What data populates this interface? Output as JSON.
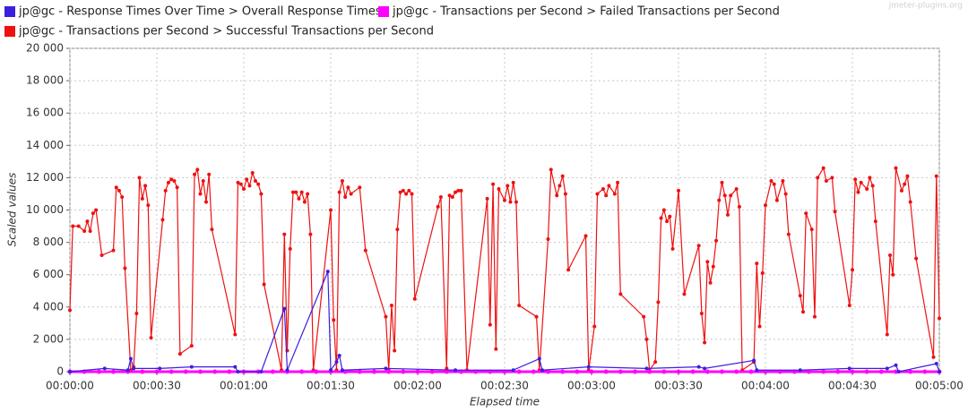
{
  "chart_data": {
    "type": "line",
    "watermark": "jmeter-plugins.org",
    "x_label": "Elapsed time",
    "y_label": "Scaled values",
    "xlim": [
      0,
      300
    ],
    "xticks": [
      {
        "value": 0,
        "label": "00:00:00"
      },
      {
        "value": 30,
        "label": "00:00:30"
      },
      {
        "value": 60,
        "label": "00:01:00"
      },
      {
        "value": 90,
        "label": "00:01:30"
      },
      {
        "value": 120,
        "label": "00:02:00"
      },
      {
        "value": 150,
        "label": "00:02:30"
      },
      {
        "value": 180,
        "label": "00:03:00"
      },
      {
        "value": 210,
        "label": "00:03:30"
      },
      {
        "value": 240,
        "label": "00:04:00"
      },
      {
        "value": 270,
        "label": "00:04:30"
      },
      {
        "value": 300,
        "label": "00:05:00"
      }
    ],
    "ylim": [
      0,
      20000
    ],
    "yticks": [
      0,
      {
        "value": 2000,
        "label": "2 000"
      },
      {
        "value": 4000,
        "label": "4 000"
      },
      {
        "value": 6000,
        "label": "6 000"
      },
      {
        "value": 8000,
        "label": "8 000"
      },
      {
        "value": 10000,
        "label": "10 000"
      },
      {
        "value": 12000,
        "label": "12 000"
      },
      {
        "value": 14000,
        "label": "14 000"
      },
      {
        "value": 16000,
        "label": "16 000"
      },
      {
        "value": 18000,
        "label": "18 000"
      },
      {
        "value": 20000,
        "label": "20 000"
      }
    ],
    "grid": true,
    "series": [
      {
        "name": "jp@gc - Response Times Over Time > Overall Response Times",
        "color": "#3a1fe0",
        "x": [
          0,
          12,
          20,
          21,
          22,
          31,
          42,
          57,
          58,
          66,
          74,
          75,
          89,
          90,
          92,
          93,
          94,
          109,
          133,
          153,
          162,
          163,
          179,
          199,
          217,
          219,
          236,
          237,
          252,
          269,
          282,
          285,
          286,
          299,
          300
        ],
        "values": [
          0,
          200,
          100,
          800,
          200,
          200,
          300,
          300,
          0,
          0,
          3900,
          100,
          6200,
          100,
          600,
          1000,
          100,
          200,
          100,
          100,
          800,
          100,
          300,
          200,
          300,
          200,
          700,
          100,
          100,
          200,
          200,
          400,
          0,
          500,
          0
        ]
      },
      {
        "name": "jp@gc - Transactions per Second > Failed Transactions per Second",
        "color": "#ff00ff",
        "x": [
          0,
          5,
          10,
          15,
          20,
          25,
          30,
          35,
          40,
          45,
          50,
          55,
          60,
          65,
          70,
          75,
          80,
          85,
          90,
          95,
          100,
          105,
          110,
          115,
          120,
          125,
          130,
          135,
          140,
          145,
          150,
          155,
          160,
          165,
          170,
          175,
          180,
          185,
          190,
          195,
          200,
          205,
          210,
          215,
          220,
          225,
          230,
          235,
          240,
          245,
          250,
          255,
          260,
          265,
          270,
          275,
          280,
          285,
          290,
          295,
          300
        ],
        "values": [
          0,
          0,
          0,
          0,
          0,
          0,
          0,
          0,
          0,
          0,
          0,
          0,
          0,
          0,
          0,
          0,
          0,
          0,
          0,
          0,
          0,
          0,
          0,
          0,
          0,
          0,
          0,
          0,
          0,
          0,
          0,
          0,
          0,
          0,
          0,
          0,
          0,
          0,
          0,
          0,
          0,
          0,
          0,
          0,
          0,
          0,
          0,
          0,
          0,
          0,
          0,
          0,
          0,
          0,
          0,
          0,
          0,
          0,
          0,
          0,
          0
        ]
      },
      {
        "name": "jp@gc - Transactions per Second > Successful Transactions per Second",
        "color": "#ee1111",
        "x": [
          0,
          1,
          3,
          5,
          6,
          7,
          8,
          9,
          11,
          15,
          16,
          17,
          18,
          19,
          21,
          22,
          23,
          24,
          25,
          26,
          27,
          28,
          32,
          33,
          34,
          35,
          36,
          37,
          38,
          42,
          43,
          44,
          45,
          46,
          47,
          48,
          49,
          57,
          58,
          59,
          60,
          61,
          62,
          63,
          64,
          65,
          66,
          67,
          73,
          74,
          75,
          76,
          77,
          78,
          79,
          80,
          81,
          82,
          83,
          84,
          90,
          91,
          92,
          93,
          94,
          95,
          96,
          97,
          100,
          102,
          109,
          110,
          111,
          112,
          113,
          114,
          115,
          116,
          117,
          118,
          119,
          127,
          128,
          130,
          131,
          132,
          133,
          134,
          135,
          137,
          144,
          145,
          146,
          147,
          148,
          150,
          151,
          152,
          153,
          154,
          155,
          161,
          162,
          165,
          166,
          168,
          169,
          170,
          171,
          172,
          178,
          179,
          181,
          182,
          184,
          185,
          186,
          188,
          189,
          190,
          198,
          199,
          200,
          202,
          203,
          204,
          205,
          206,
          207,
          208,
          210,
          212,
          217,
          218,
          219,
          220,
          221,
          222,
          223,
          224,
          225,
          226,
          227,
          228,
          230,
          231,
          232,
          236,
          237,
          238,
          239,
          240,
          242,
          243,
          244,
          246,
          247,
          248,
          252,
          253,
          254,
          256,
          257,
          258,
          260,
          261,
          263,
          264,
          269,
          270,
          271,
          272,
          273,
          275,
          276,
          277,
          278,
          282,
          283,
          284,
          285,
          287,
          288,
          289,
          290,
          292,
          298,
          299,
          300
        ],
        "values": [
          3800,
          9000,
          9000,
          8700,
          9300,
          8700,
          9800,
          10000,
          7200,
          7500,
          11400,
          11200,
          10800,
          6400,
          100,
          300,
          3600,
          12000,
          10700,
          11500,
          10300,
          2100,
          9400,
          11200,
          11700,
          11900,
          11800,
          11400,
          1100,
          1600,
          12200,
          12500,
          11000,
          11800,
          10500,
          12200,
          8800,
          2300,
          11700,
          11600,
          11300,
          11900,
          11500,
          12300,
          11800,
          11600,
          11000,
          5400,
          100,
          8500,
          1300,
          7600,
          11100,
          11100,
          10700,
          11100,
          10500,
          11000,
          8500,
          100,
          10000,
          3200,
          100,
          11100,
          11800,
          10800,
          11400,
          11000,
          11400,
          7500,
          3400,
          100,
          4100,
          1300,
          8800,
          11100,
          11200,
          11000,
          11200,
          11000,
          4500,
          10200,
          10800,
          200,
          10900,
          10800,
          11100,
          11200,
          11200,
          100,
          10700,
          2900,
          11600,
          1400,
          11300,
          10600,
          11500,
          10500,
          11700,
          10500,
          4100,
          3400,
          100,
          8200,
          12500,
          10900,
          11500,
          12100,
          11000,
          6300,
          8400,
          100,
          2800,
          11000,
          11300,
          10900,
          11500,
          11000,
          11700,
          4800,
          3400,
          2000,
          100,
          600,
          4300,
          9500,
          10000,
          9300,
          9600,
          7600,
          11200,
          4800,
          7800,
          3600,
          1800,
          6800,
          5500,
          6500,
          8100,
          10600,
          11700,
          10900,
          9700,
          10900,
          11300,
          10200,
          100,
          600,
          6700,
          2800,
          6100,
          10300,
          11800,
          11600,
          10600,
          11800,
          11000,
          8500,
          4700,
          3700,
          9800,
          8800,
          3400,
          12000,
          12600,
          11800,
          12000,
          9900,
          4100,
          6300,
          11900,
          11100,
          11700,
          11300,
          12000,
          11500,
          9300,
          2300,
          7200,
          6000,
          12600,
          11200,
          11600,
          12100,
          10500,
          7000,
          900,
          12100,
          3300
        ]
      }
    ]
  }
}
